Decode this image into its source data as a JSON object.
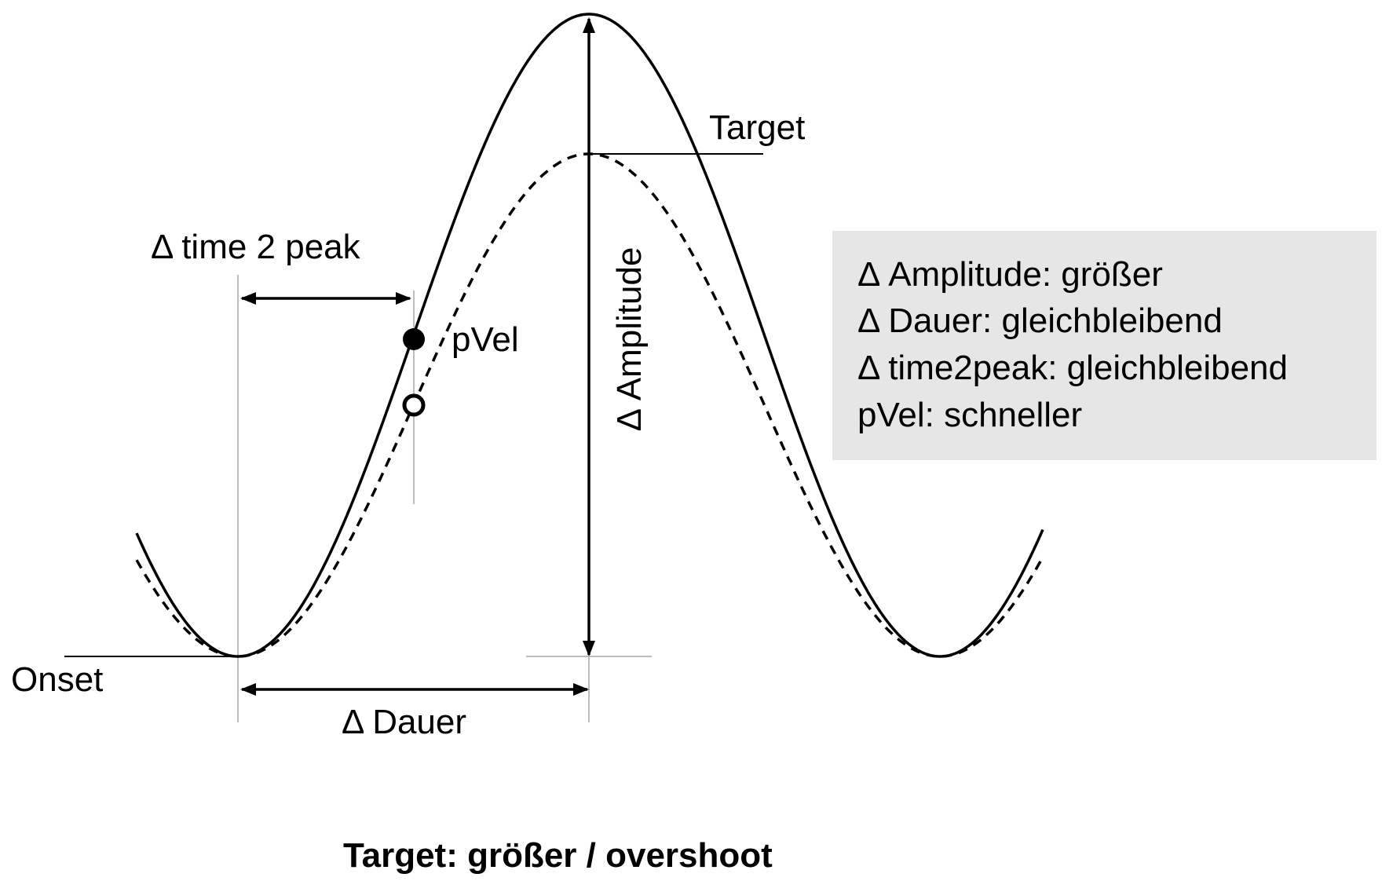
{
  "labels": {
    "target": "Target",
    "time2peak": "Δ time 2 peak",
    "pvel": "pVel",
    "amplitude": "Δ Amplitude",
    "onset": "Onset",
    "dauer": "Δ Dauer"
  },
  "summary": {
    "lines": [
      "Δ Amplitude: größer",
      "Δ Dauer: gleichbleibend",
      "Δ time2peak: gleichbleibend",
      "pVel: schneller"
    ]
  },
  "caption": "Target: größer / overshoot",
  "colors": {
    "stroke": "#000000",
    "guide": "#bdbdbd",
    "box_fill": "#e6e6e6"
  }
}
